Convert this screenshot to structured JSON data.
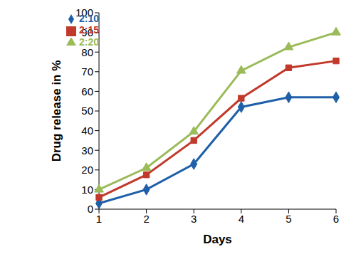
{
  "chart_data": {
    "type": "line",
    "x_label": "Days",
    "y_label": "Drug release in %",
    "categories": [
      "1",
      "2",
      "3",
      "4",
      "5",
      "6"
    ],
    "series": [
      {
        "name": "2:10",
        "color": "#1f5fa8",
        "marker": "diamond",
        "values": [
          3,
          10,
          23,
          52,
          57,
          57
        ]
      },
      {
        "name": "2:15",
        "color": "#c0392b",
        "marker": "square",
        "values": [
          6,
          17.5,
          35,
          56.5,
          72,
          75.5
        ]
      },
      {
        "name": "2:20",
        "color": "#9bbb59",
        "marker": "triangle",
        "values": [
          10,
          21,
          39.5,
          70.5,
          82.5,
          90
        ]
      }
    ],
    "ylim": [
      0,
      100
    ],
    "yticks": [
      0,
      10,
      20,
      30,
      40,
      50,
      60,
      70,
      80,
      90,
      100
    ],
    "grid": false,
    "legend": "top-left"
  }
}
